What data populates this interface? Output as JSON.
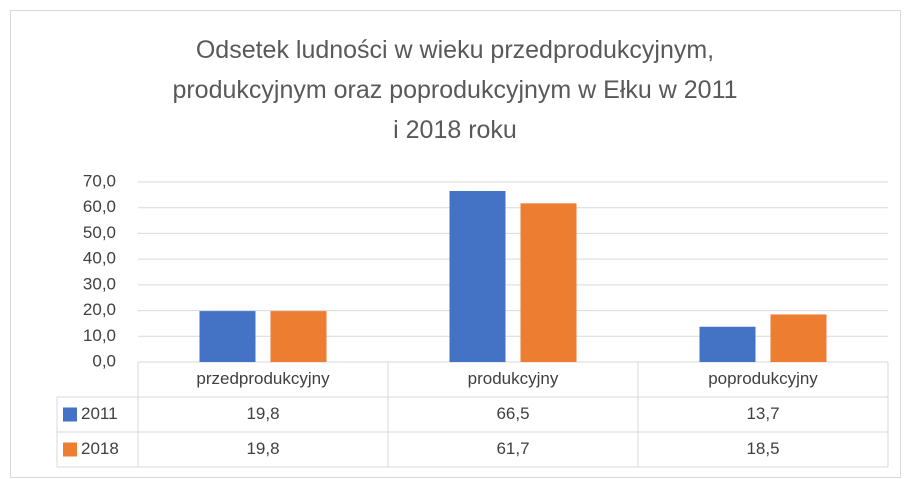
{
  "chart_data": {
    "type": "bar",
    "title": "Odsetek ludności w wieku przedprodukcyjnym,\nprodukcyjnym oraz poprodukcyjnym w Ełku w 2011\ni 2018 roku",
    "categories": [
      "przedprodukcyjny",
      "produkcyjny",
      "poprodukcyjny"
    ],
    "series": [
      {
        "name": "2011",
        "color": "#4472c4",
        "values": [
          19.8,
          66.5,
          13.7
        ],
        "value_labels": [
          "19,8",
          "66,5",
          "13,7"
        ]
      },
      {
        "name": "2018",
        "color": "#ed7d31",
        "values": [
          19.8,
          61.7,
          18.5
        ],
        "value_labels": [
          "19,8",
          "61,7",
          "18,5"
        ]
      }
    ],
    "ylim": [
      0,
      70
    ],
    "yticks": [
      {
        "value": 0,
        "label": "0,0"
      },
      {
        "value": 10,
        "label": "10,0"
      },
      {
        "value": 20,
        "label": "20,0"
      },
      {
        "value": 30,
        "label": "30,0"
      },
      {
        "value": 40,
        "label": "40,0"
      },
      {
        "value": 50,
        "label": "50,0"
      },
      {
        "value": 60,
        "label": "60,0"
      },
      {
        "value": 70,
        "label": "70,0"
      }
    ],
    "grid": true,
    "data_table": true
  }
}
